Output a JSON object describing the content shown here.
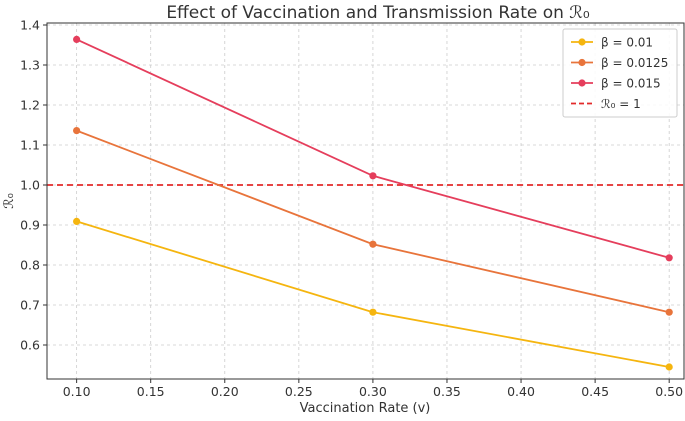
{
  "chart_data": {
    "type": "line",
    "title": "Effect of Vaccination and Transmission Rate on ℛ₀",
    "xlabel": "Vaccination Rate (v)",
    "ylabel": "ℛ₀",
    "xlim": [
      0.08,
      0.51
    ],
    "ylim": [
      0.515,
      1.405
    ],
    "x_ticks": [
      "0.10",
      "0.15",
      "0.20",
      "0.25",
      "0.30",
      "0.35",
      "0.40",
      "0.45",
      "0.50"
    ],
    "x_tick_values": [
      0.1,
      0.15,
      0.2,
      0.25,
      0.3,
      0.35,
      0.4,
      0.45,
      0.5
    ],
    "y_ticks": [
      "0.6",
      "0.7",
      "0.8",
      "0.9",
      "1.0",
      "1.1",
      "1.2",
      "1.3",
      "1.4"
    ],
    "y_tick_values": [
      0.6,
      0.7,
      0.8,
      0.9,
      1.0,
      1.1,
      1.2,
      1.3,
      1.4
    ],
    "grid": true,
    "legend_position": "top-right",
    "x": [
      0.1,
      0.3,
      0.5
    ],
    "series": [
      {
        "name": "β = 0.01",
        "color": "#F5B50F",
        "values": [
          0.909,
          0.682,
          0.545
        ]
      },
      {
        "name": "β = 0.0125",
        "color": "#E8743B",
        "values": [
          1.136,
          0.852,
          0.682
        ]
      },
      {
        "name": "β = 0.015",
        "color": "#E53E5C",
        "values": [
          1.364,
          1.023,
          0.818
        ]
      }
    ],
    "reference_line": {
      "name": "ℛ₀ = 1",
      "value": 1.0,
      "color": "#E32A2A",
      "style": "dashed"
    }
  }
}
